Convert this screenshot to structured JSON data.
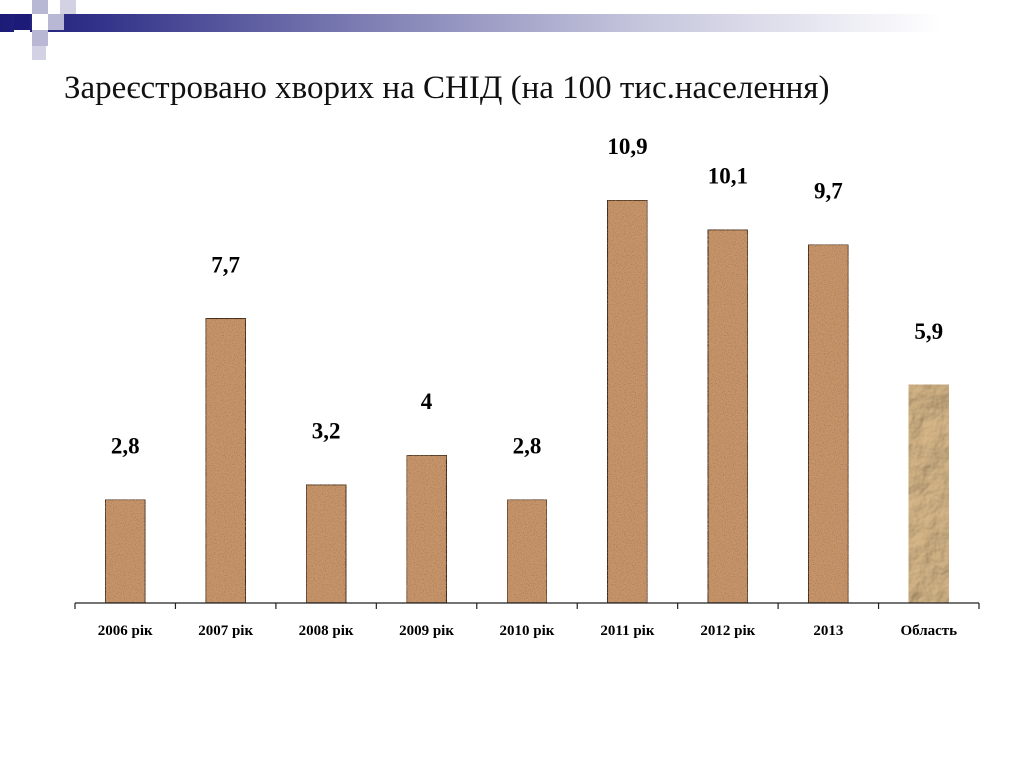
{
  "slide": {
    "title": "Зареєстровано хворих на СНІД (на 100 тис.населення)"
  },
  "colors": {
    "bar_fill": "#c8946a",
    "bar_stroke": "#3a2414",
    "oblast_fill": "#bc9664",
    "accent_bar": "#1c1c78",
    "axis": "#222222"
  },
  "chart_data": {
    "type": "bar",
    "title": "Зареєстровано хворих на СНІД (на 100 тис.населення)",
    "categories": [
      "2006 рік",
      "2007 рік",
      "2008 рік",
      "2009 рік",
      "2010 рік",
      "2011 рік",
      "2012 рік",
      "2013",
      "Область"
    ],
    "value_labels": [
      "2,8",
      "7,7",
      "3,2",
      "4",
      "2,8",
      "10,9",
      "10,1",
      "9,7",
      "5,9"
    ],
    "values": [
      2.8,
      7.7,
      3.2,
      4,
      2.8,
      10.9,
      10.1,
      9.7,
      5.9
    ],
    "ylim": [
      0,
      11.5
    ],
    "grid": false,
    "legend": "none",
    "xlabel": "",
    "ylabel": ""
  }
}
